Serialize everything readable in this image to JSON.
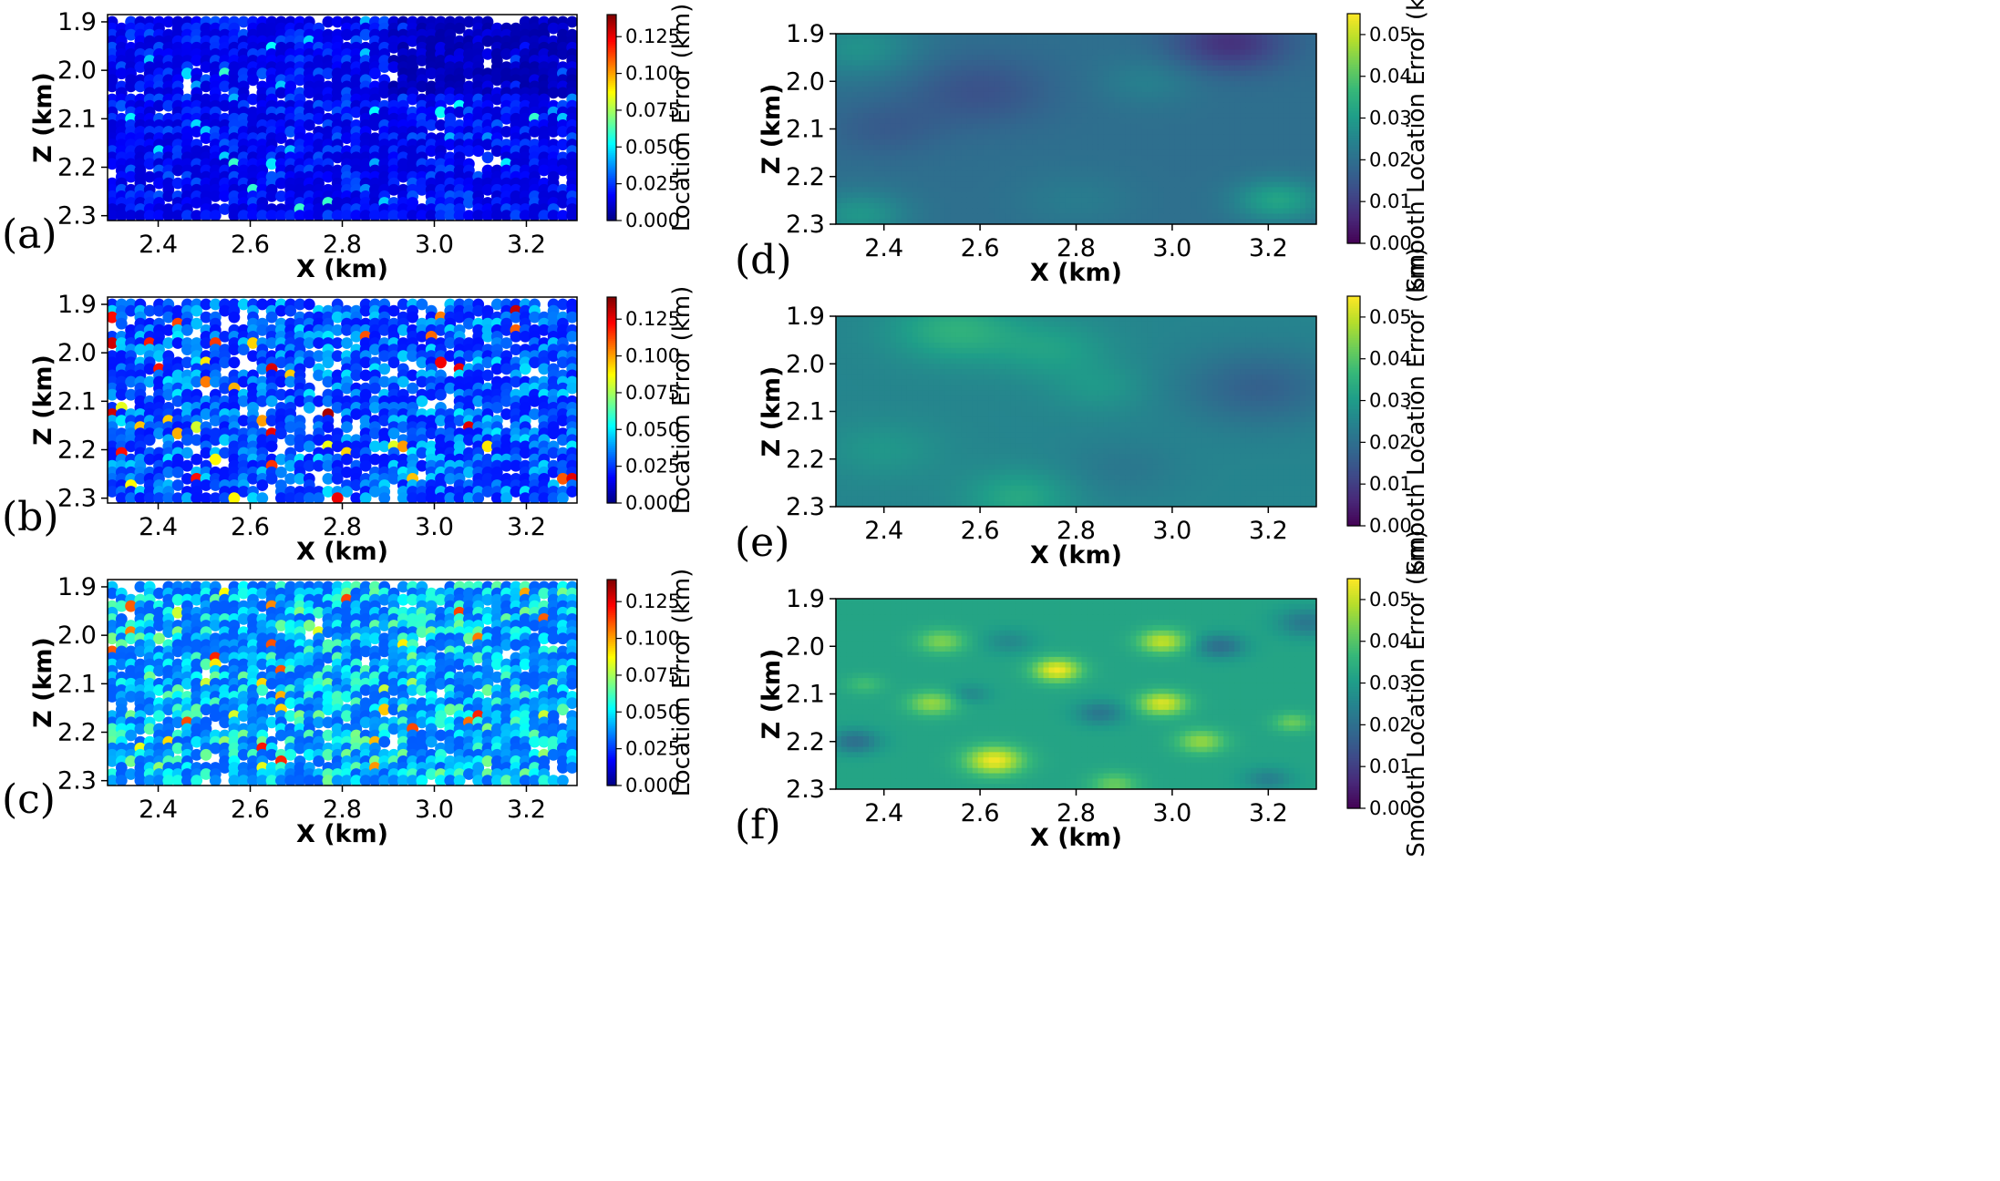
{
  "chart_data": [
    {
      "panel": "(a)",
      "type": "scatter",
      "seed": 11,
      "xlabel": "X (km)",
      "ylabel": "Z (km)",
      "xlim": [
        2.29,
        3.31
      ],
      "ylim": [
        2.31,
        1.885
      ],
      "xticks": [
        "2.4",
        "2.6",
        "2.8",
        "3.0",
        "3.2"
      ],
      "xtick_values": [
        2.4,
        2.6,
        2.8,
        3.0,
        3.2
      ],
      "yticks": [
        "1.9",
        "2.0",
        "2.1",
        "2.2",
        "2.3"
      ],
      "ytick_values": [
        1.9,
        2.0,
        2.1,
        2.2,
        2.3
      ],
      "grid_x": [
        2.3,
        3.3,
        0.0204
      ],
      "grid_z": [
        1.9,
        2.3,
        0.01333
      ],
      "colorbar": {
        "label": "Location Error (km)",
        "colormap": "jet",
        "range": [
          0.0,
          0.14
        ],
        "ticks": [
          "0.000",
          "0.025",
          "0.050",
          "0.075",
          "0.100",
          "0.125"
        ],
        "tick_values": [
          0.0,
          0.025,
          0.05,
          0.075,
          0.1,
          0.125
        ]
      },
      "error_profile": {
        "base": 0.012,
        "spread": 0.018,
        "max": 0.06,
        "missing_fraction": 0.08
      }
    },
    {
      "panel": "(b)",
      "type": "scatter",
      "seed": 23,
      "xlabel": "X (km)",
      "ylabel": "Z (km)",
      "xlim": [
        2.29,
        3.31
      ],
      "ylim": [
        2.31,
        1.885
      ],
      "xticks": [
        "2.4",
        "2.6",
        "2.8",
        "3.0",
        "3.2"
      ],
      "xtick_values": [
        2.4,
        2.6,
        2.8,
        3.0,
        3.2
      ],
      "yticks": [
        "1.9",
        "2.0",
        "2.1",
        "2.2",
        "2.3"
      ],
      "ytick_values": [
        1.9,
        2.0,
        2.1,
        2.2,
        2.3
      ],
      "grid_x": [
        2.3,
        3.3,
        0.0204
      ],
      "grid_z": [
        1.9,
        2.3,
        0.01333
      ],
      "colorbar": {
        "label": "Location Error (km)",
        "colormap": "jet",
        "range": [
          0.0,
          0.14
        ],
        "ticks": [
          "0.000",
          "0.025",
          "0.050",
          "0.075",
          "0.100",
          "0.125"
        ],
        "tick_values": [
          0.0,
          0.025,
          0.05,
          0.075,
          0.1,
          0.125
        ]
      },
      "error_profile": {
        "base": 0.02,
        "spread": 0.03,
        "max": 0.135,
        "missing_fraction": 0.18
      }
    },
    {
      "panel": "(c)",
      "type": "scatter",
      "seed": 37,
      "xlabel": "X (km)",
      "ylabel": "Z (km)",
      "xlim": [
        2.29,
        3.31
      ],
      "ylim": [
        2.31,
        1.885
      ],
      "xticks": [
        "2.4",
        "2.6",
        "2.8",
        "3.0",
        "3.2"
      ],
      "xtick_values": [
        2.4,
        2.6,
        2.8,
        3.0,
        3.2
      ],
      "yticks": [
        "1.9",
        "2.0",
        "2.1",
        "2.2",
        "2.3"
      ],
      "ytick_values": [
        1.9,
        2.0,
        2.1,
        2.2,
        2.3
      ],
      "grid_x": [
        2.3,
        3.3,
        0.0204
      ],
      "grid_z": [
        1.9,
        2.3,
        0.01333
      ],
      "colorbar": {
        "label": "Location Error (km)",
        "colormap": "jet",
        "range": [
          0.0,
          0.14
        ],
        "ticks": [
          "0.000",
          "0.025",
          "0.050",
          "0.075",
          "0.100",
          "0.125"
        ],
        "tick_values": [
          0.0,
          0.025,
          0.05,
          0.075,
          0.1,
          0.125
        ]
      },
      "error_profile": {
        "base": 0.03,
        "spread": 0.04,
        "max": 0.12,
        "missing_fraction": 0.1
      }
    },
    {
      "panel": "(d)",
      "type": "heatmap",
      "seed": 41,
      "xlabel": "X (km)",
      "ylabel": "Z (km)",
      "xlim": [
        2.3,
        3.3
      ],
      "ylim": [
        2.3,
        1.9
      ],
      "xticks": [
        "2.4",
        "2.6",
        "2.8",
        "3.0",
        "3.2"
      ],
      "xtick_values": [
        2.4,
        2.6,
        2.8,
        3.0,
        3.2
      ],
      "yticks": [
        "1.9",
        "2.0",
        "2.1",
        "2.2",
        "2.3"
      ],
      "ytick_values": [
        1.9,
        2.0,
        2.1,
        2.2,
        2.3
      ],
      "colorbar": {
        "label": "Smooth Location Error (km)",
        "colormap": "viridis",
        "range": [
          0.0,
          0.055
        ],
        "ticks": [
          "0.00",
          "0.01",
          "0.02",
          "0.03",
          "0.04",
          "0.05"
        ],
        "tick_values": [
          0.0,
          0.01,
          0.02,
          0.03,
          0.04,
          0.05
        ]
      },
      "field": {
        "base": 0.02,
        "blobs": [
          {
            "x": 2.35,
            "z": 1.93,
            "amp": 0.008,
            "r": 0.12
          },
          {
            "x": 2.6,
            "z": 2.02,
            "amp": -0.006,
            "r": 0.15
          },
          {
            "x": 3.12,
            "z": 1.92,
            "amp": -0.012,
            "r": 0.12
          },
          {
            "x": 3.22,
            "z": 2.25,
            "amp": 0.012,
            "r": 0.09
          },
          {
            "x": 2.35,
            "z": 2.28,
            "amp": 0.009,
            "r": 0.1
          },
          {
            "x": 2.4,
            "z": 2.1,
            "amp": -0.004,
            "r": 0.12
          },
          {
            "x": 2.95,
            "z": 2.0,
            "amp": 0.004,
            "r": 0.1
          },
          {
            "x": 2.8,
            "z": 2.25,
            "amp": 0.003,
            "r": 0.12
          }
        ]
      }
    },
    {
      "panel": "(e)",
      "type": "heatmap",
      "seed": 53,
      "xlabel": "X (km)",
      "ylabel": "Z (km)",
      "xlim": [
        2.3,
        3.3
      ],
      "ylim": [
        2.3,
        1.9
      ],
      "xticks": [
        "2.4",
        "2.6",
        "2.8",
        "3.0",
        "3.2"
      ],
      "xtick_values": [
        2.4,
        2.6,
        2.8,
        3.0,
        3.2
      ],
      "yticks": [
        "1.9",
        "2.0",
        "2.1",
        "2.2",
        "2.3"
      ],
      "ytick_values": [
        1.9,
        2.0,
        2.1,
        2.2,
        2.3
      ],
      "colorbar": {
        "label": "Smooth Location Error (km)",
        "colormap": "viridis",
        "range": [
          0.0,
          0.055
        ],
        "ticks": [
          "0.00",
          "0.01",
          "0.02",
          "0.03",
          "0.04",
          "0.05"
        ],
        "tick_values": [
          0.0,
          0.01,
          0.02,
          0.03,
          0.04,
          0.05
        ]
      },
      "field": {
        "base": 0.025,
        "blobs": [
          {
            "x": 2.55,
            "z": 1.93,
            "amp": 0.01,
            "r": 0.13
          },
          {
            "x": 2.75,
            "z": 1.97,
            "amp": 0.006,
            "r": 0.12
          },
          {
            "x": 3.18,
            "z": 2.05,
            "amp": -0.008,
            "r": 0.16
          },
          {
            "x": 2.68,
            "z": 2.28,
            "amp": 0.008,
            "r": 0.11
          },
          {
            "x": 2.4,
            "z": 2.18,
            "amp": 0.004,
            "r": 0.12
          },
          {
            "x": 2.9,
            "z": 2.22,
            "amp": -0.003,
            "r": 0.12
          },
          {
            "x": 2.85,
            "z": 2.05,
            "amp": 0.004,
            "r": 0.1
          }
        ]
      }
    },
    {
      "panel": "(f)",
      "type": "heatmap",
      "seed": 67,
      "xlabel": "X (km)",
      "ylabel": "Z (km)",
      "xlim": [
        2.3,
        3.3
      ],
      "ylim": [
        2.3,
        1.9
      ],
      "xticks": [
        "2.4",
        "2.6",
        "2.8",
        "3.0",
        "3.2"
      ],
      "xtick_values": [
        2.4,
        2.6,
        2.8,
        3.0,
        3.2
      ],
      "yticks": [
        "1.9",
        "2.0",
        "2.1",
        "2.2",
        "2.3"
      ],
      "ytick_values": [
        1.9,
        2.0,
        2.1,
        2.2,
        2.3
      ],
      "colorbar": {
        "label": "Smooth Location Error (km)",
        "colormap": "viridis",
        "range": [
          0.0,
          0.055
        ],
        "ticks": [
          "0.00",
          "0.01",
          "0.02",
          "0.03",
          "0.04",
          "0.05"
        ],
        "tick_values": [
          0.0,
          0.01,
          0.02,
          0.03,
          0.04,
          0.05
        ]
      },
      "field": {
        "base": 0.032,
        "blobs": [
          {
            "x": 2.76,
            "z": 2.05,
            "amp": 0.022,
            "r": 0.05
          },
          {
            "x": 2.98,
            "z": 1.99,
            "amp": 0.018,
            "r": 0.05
          },
          {
            "x": 2.98,
            "z": 2.12,
            "amp": 0.02,
            "r": 0.05
          },
          {
            "x": 3.06,
            "z": 2.2,
            "amp": 0.014,
            "r": 0.05
          },
          {
            "x": 2.63,
            "z": 2.24,
            "amp": 0.022,
            "r": 0.06
          },
          {
            "x": 2.5,
            "z": 2.12,
            "amp": 0.014,
            "r": 0.05
          },
          {
            "x": 2.52,
            "z": 1.99,
            "amp": 0.012,
            "r": 0.05
          },
          {
            "x": 2.88,
            "z": 2.29,
            "amp": 0.01,
            "r": 0.05
          },
          {
            "x": 3.25,
            "z": 2.16,
            "amp": 0.01,
            "r": 0.04
          },
          {
            "x": 2.36,
            "z": 2.08,
            "amp": 0.006,
            "r": 0.04
          },
          {
            "x": 2.34,
            "z": 2.2,
            "amp": -0.012,
            "r": 0.05
          },
          {
            "x": 3.1,
            "z": 2.0,
            "amp": -0.012,
            "r": 0.05
          },
          {
            "x": 2.85,
            "z": 2.14,
            "amp": -0.01,
            "r": 0.05
          },
          {
            "x": 3.28,
            "z": 1.95,
            "amp": -0.01,
            "r": 0.06
          },
          {
            "x": 2.66,
            "z": 1.99,
            "amp": -0.006,
            "r": 0.05
          },
          {
            "x": 3.2,
            "z": 2.28,
            "amp": -0.008,
            "r": 0.05
          },
          {
            "x": 2.58,
            "z": 2.1,
            "amp": -0.006,
            "r": 0.04
          }
        ]
      }
    }
  ]
}
